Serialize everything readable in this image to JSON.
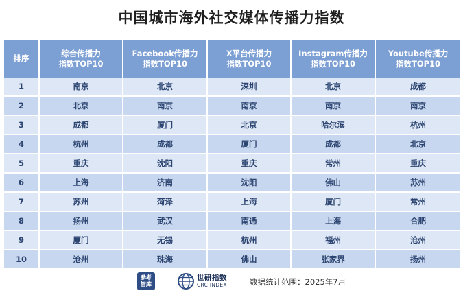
{
  "title": "中国城市海外社交媒体传播力指数",
  "table": {
    "headers": [
      [
        "排序",
        ""
      ],
      [
        "综合传播力",
        "指数TOP10"
      ],
      [
        "Facebook传播力",
        "指数TOP10"
      ],
      [
        "X平台传播力",
        "指数TOP10"
      ],
      [
        "Instagram传播力",
        "指数TOP10"
      ],
      [
        "Youtube传播力",
        "指数TOP10"
      ]
    ],
    "rows": [
      [
        "1",
        "南京",
        "北京",
        "深圳",
        "北京",
        "成都"
      ],
      [
        "2",
        "北京",
        "南京",
        "南京",
        "南京",
        "南京"
      ],
      [
        "3",
        "成都",
        "厦门",
        "北京",
        "哈尔滨",
        "杭州"
      ],
      [
        "4",
        "杭州",
        "成都",
        "厦门",
        "成都",
        "北京"
      ],
      [
        "5",
        "重庆",
        "沈阳",
        "重庆",
        "常州",
        "重庆"
      ],
      [
        "6",
        "上海",
        "济南",
        "沈阳",
        "佛山",
        "苏州"
      ],
      [
        "7",
        "苏州",
        "菏泽",
        "上海",
        "厦门",
        "常州"
      ],
      [
        "8",
        "扬州",
        "武汉",
        "南通",
        "上海",
        "合肥"
      ],
      [
        "9",
        "厦门",
        "无锡",
        "杭州",
        "福州",
        "沧州"
      ],
      [
        "10",
        "沧州",
        "珠海",
        "佛山",
        "张家界",
        "扬州"
      ]
    ]
  },
  "footer": {
    "logo1_line1": "参考",
    "logo1_line2": "智库",
    "logo2_main": "世研指数",
    "logo2_sub": "CRC INDEX",
    "stat_note": "数据统计范围：2025年7月"
  },
  "colors": {
    "header_bg": "#7c9fd4",
    "row_light": "#dde7f6",
    "row_dark": "#c7d7ef",
    "text": "#2c4470"
  }
}
